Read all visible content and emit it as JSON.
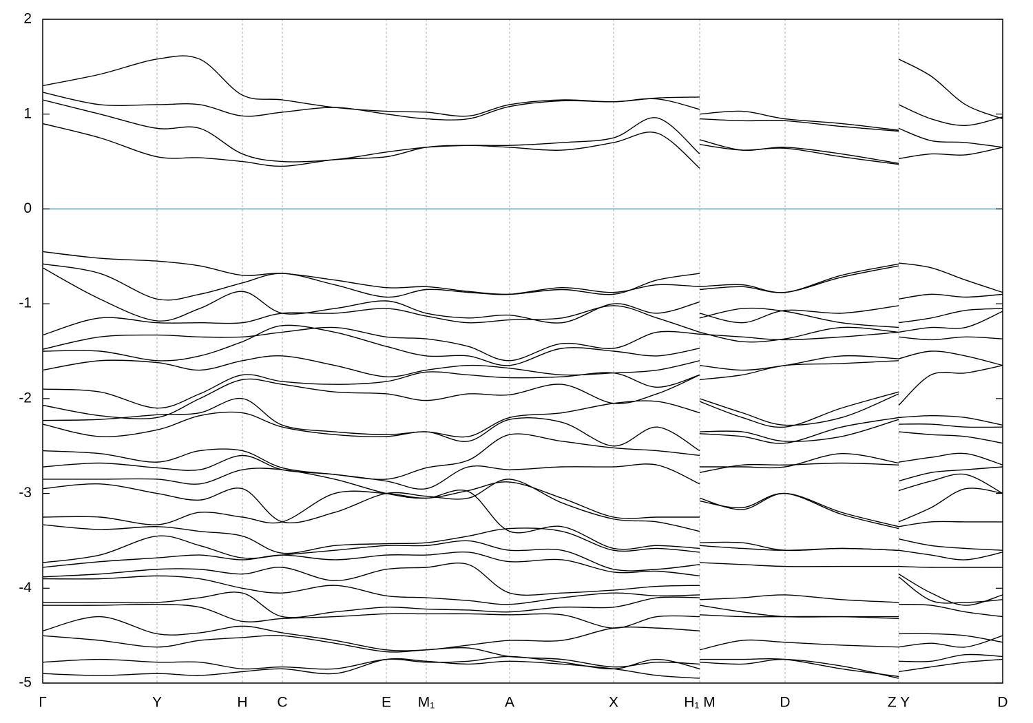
{
  "chart_data": {
    "type": "line",
    "color": "#000000",
    "grid": true,
    "xlim": [
      0,
      1394
    ],
    "ylim": [
      -5,
      2
    ],
    "yticks": [
      -5,
      -4,
      -3,
      -2,
      -1,
      0,
      1,
      2
    ],
    "xticks": [
      {
        "value": 0,
        "label": "Γ"
      },
      {
        "value": 166,
        "label": "Y"
      },
      {
        "value": 290,
        "label": "H"
      },
      {
        "value": 348,
        "label": "C"
      },
      {
        "value": 499,
        "label": "E"
      },
      {
        "value": 557,
        "label": "M₁"
      },
      {
        "value": 678,
        "label": "A"
      },
      {
        "value": 829,
        "label": "X"
      },
      {
        "value": 954,
        "label": "H₁ M"
      },
      {
        "value": 1078,
        "label": "D"
      },
      {
        "value": 1243,
        "label": "Z Y"
      },
      {
        "value": 1394,
        "label": "D"
      }
    ],
    "reference_line": {
      "value": 0,
      "color": "#4fb0c6"
    },
    "segments": [
      {
        "x": [
          0,
          83,
          166,
          228,
          290,
          348,
          424,
          499,
          557,
          618,
          678,
          754,
          829,
          892,
          954
        ],
        "bands": [
          [
            1.3,
            1.42,
            1.58,
            1.58,
            1.2,
            1.15,
            1.07,
            1.03,
            1.02,
            0.98,
            1.1,
            1.15,
            1.13,
            1.17,
            1.18
          ],
          [
            1.23,
            1.1,
            1.1,
            1.1,
            0.98,
            1.02,
            1.07,
            1.0,
            0.95,
            0.95,
            1.08,
            1.14,
            1.13,
            1.16,
            1.05
          ],
          [
            1.15,
            1.0,
            0.85,
            0.85,
            0.58,
            0.5,
            0.52,
            0.6,
            0.65,
            0.67,
            0.67,
            0.7,
            0.75,
            0.96,
            0.58
          ],
          [
            0.9,
            0.75,
            0.55,
            0.54,
            0.5,
            0.45,
            0.52,
            0.55,
            0.65,
            0.67,
            0.65,
            0.62,
            0.7,
            0.8,
            0.43
          ],
          [
            -0.45,
            -0.52,
            -0.55,
            -0.6,
            -0.7,
            -0.68,
            -0.75,
            -0.83,
            -0.82,
            -0.87,
            -0.9,
            -0.85,
            -0.9,
            -0.75,
            -0.68
          ],
          [
            -0.58,
            -0.68,
            -0.95,
            -0.9,
            -0.78,
            -0.68,
            -0.8,
            -0.93,
            -0.85,
            -0.88,
            -0.9,
            -0.83,
            -0.88,
            -0.8,
            -0.82
          ],
          [
            -0.62,
            -0.95,
            -1.18,
            -1.05,
            -0.87,
            -1.1,
            -1.05,
            -0.97,
            -1.1,
            -1.15,
            -1.12,
            -1.2,
            -1.0,
            -1.1,
            -0.98
          ],
          [
            -1.33,
            -1.15,
            -1.2,
            -1.2,
            -1.2,
            -1.1,
            -1.1,
            -1.05,
            -1.13,
            -1.2,
            -1.17,
            -1.15,
            -1.02,
            -1.15,
            -1.3
          ],
          [
            -1.48,
            -1.35,
            -1.33,
            -1.35,
            -1.35,
            -1.3,
            -1.25,
            -1.35,
            -1.37,
            -1.45,
            -1.6,
            -1.42,
            -1.47,
            -1.3,
            -1.32
          ],
          [
            -1.5,
            -1.5,
            -1.6,
            -1.55,
            -1.4,
            -1.23,
            -1.3,
            -1.45,
            -1.55,
            -1.55,
            -1.65,
            -1.47,
            -1.5,
            -1.55,
            -1.47
          ],
          [
            -1.7,
            -1.6,
            -1.62,
            -1.7,
            -1.6,
            -1.55,
            -1.65,
            -1.77,
            -1.7,
            -1.65,
            -1.68,
            -1.75,
            -1.73,
            -1.7,
            -1.6
          ],
          [
            -1.9,
            -1.93,
            -2.1,
            -1.95,
            -1.75,
            -1.82,
            -1.85,
            -1.82,
            -1.72,
            -1.75,
            -1.78,
            -1.77,
            -1.73,
            -1.88,
            -1.75
          ],
          [
            -2.07,
            -2.18,
            -2.2,
            -2.0,
            -1.8,
            -1.85,
            -1.93,
            -1.95,
            -2.02,
            -1.95,
            -1.96,
            -1.85,
            -2.05,
            -1.95,
            -1.75
          ],
          [
            -2.23,
            -2.22,
            -2.17,
            -2.15,
            -2.0,
            -2.28,
            -2.35,
            -2.38,
            -2.35,
            -2.4,
            -2.2,
            -2.15,
            -2.05,
            -2.03,
            -2.15
          ],
          [
            -2.27,
            -2.4,
            -2.33,
            -2.18,
            -2.15,
            -2.3,
            -2.38,
            -2.4,
            -2.35,
            -2.45,
            -2.22,
            -2.25,
            -2.5,
            -2.3,
            -2.55
          ],
          [
            -2.55,
            -2.58,
            -2.67,
            -2.55,
            -2.55,
            -2.73,
            -2.8,
            -2.85,
            -2.73,
            -2.65,
            -2.38,
            -2.45,
            -2.52,
            -2.55,
            -2.6
          ],
          [
            -2.72,
            -2.68,
            -2.73,
            -2.75,
            -2.6,
            -2.75,
            -2.8,
            -2.87,
            -2.95,
            -2.72,
            -2.75,
            -2.72,
            -2.72,
            -2.7,
            -2.9
          ],
          [
            -2.85,
            -2.85,
            -2.85,
            -2.9,
            -2.75,
            -2.75,
            -2.85,
            -3.0,
            -3.05,
            -2.97,
            -2.88,
            -3.05,
            -3.25,
            -3.25,
            -3.25
          ],
          [
            -2.95,
            -2.9,
            -3.0,
            -3.07,
            -2.95,
            -3.3,
            -3.2,
            -3.0,
            -3.03,
            -3.05,
            -2.85,
            -3.1,
            -3.27,
            -3.3,
            -3.4
          ],
          [
            -3.25,
            -3.25,
            -3.33,
            -3.2,
            -3.25,
            -3.3,
            -3.0,
            -3.0,
            -3.05,
            -2.98,
            -3.4,
            -3.35,
            -3.58,
            -3.55,
            -3.58
          ],
          [
            -3.33,
            -3.38,
            -3.35,
            -3.4,
            -3.45,
            -3.63,
            -3.55,
            -3.53,
            -3.52,
            -3.45,
            -3.37,
            -3.4,
            -3.6,
            -3.58,
            -3.62
          ],
          [
            -3.73,
            -3.65,
            -3.45,
            -3.55,
            -3.68,
            -3.65,
            -3.6,
            -3.55,
            -3.55,
            -3.5,
            -3.6,
            -3.6,
            -3.8,
            -3.8,
            -3.75
          ],
          [
            -3.78,
            -3.72,
            -3.68,
            -3.65,
            -3.7,
            -3.65,
            -3.7,
            -3.65,
            -3.65,
            -3.62,
            -3.72,
            -3.7,
            -3.83,
            -3.82,
            -3.87
          ],
          [
            -3.88,
            -3.85,
            -3.8,
            -3.8,
            -3.85,
            -3.78,
            -3.92,
            -3.8,
            -3.78,
            -3.75,
            -4.05,
            -4.05,
            -4.02,
            -3.98,
            -3.97
          ],
          [
            -3.9,
            -3.9,
            -3.87,
            -3.9,
            -4.0,
            -4.05,
            -3.97,
            -4.08,
            -4.1,
            -4.13,
            -4.17,
            -4.1,
            -4.05,
            -4.08,
            -4.07
          ],
          [
            -4.15,
            -4.15,
            -4.15,
            -4.1,
            -4.05,
            -4.3,
            -4.25,
            -4.2,
            -4.22,
            -4.23,
            -4.25,
            -4.2,
            -4.2,
            -4.1,
            -4.1
          ],
          [
            -4.18,
            -4.18,
            -4.17,
            -4.2,
            -4.35,
            -4.32,
            -4.3,
            -4.27,
            -4.27,
            -4.27,
            -4.28,
            -4.28,
            -4.42,
            -4.3,
            -4.3
          ],
          [
            -4.45,
            -4.3,
            -4.48,
            -4.47,
            -4.4,
            -4.47,
            -4.55,
            -4.65,
            -4.65,
            -4.6,
            -4.55,
            -4.55,
            -4.42,
            -4.42,
            -4.45
          ],
          [
            -4.5,
            -4.55,
            -4.62,
            -4.55,
            -4.52,
            -4.5,
            -4.58,
            -4.67,
            -4.65,
            -4.63,
            -4.72,
            -4.75,
            -4.83,
            -4.78,
            -4.8
          ],
          [
            -4.78,
            -4.75,
            -4.78,
            -4.78,
            -4.85,
            -4.83,
            -4.85,
            -4.75,
            -4.78,
            -4.77,
            -4.72,
            -4.78,
            -4.85,
            -4.75,
            -4.85
          ],
          [
            -4.9,
            -4.92,
            -4.9,
            -4.92,
            -4.88,
            -4.85,
            -4.9,
            -4.75,
            -4.77,
            -4.8,
            -4.77,
            -4.8,
            -4.85,
            -4.92,
            -4.95
          ]
        ]
      },
      {
        "x": [
          954,
          1016,
          1078,
          1160,
          1243
        ],
        "bands": [
          [
            1.0,
            1.03,
            0.95,
            0.9,
            0.83
          ],
          [
            0.95,
            0.93,
            0.93,
            0.87,
            0.82
          ],
          [
            0.73,
            0.62,
            0.65,
            0.58,
            0.48
          ],
          [
            0.68,
            0.62,
            0.64,
            0.55,
            0.47
          ],
          [
            -0.82,
            -0.8,
            -0.88,
            -0.7,
            -0.58
          ],
          [
            -0.85,
            -0.82,
            -0.88,
            -0.72,
            -0.6
          ],
          [
            -1.1,
            -1.2,
            -1.07,
            -1.1,
            -1.02
          ],
          [
            -1.15,
            -1.05,
            -1.08,
            -1.2,
            -1.25
          ],
          [
            -1.3,
            -1.4,
            -1.37,
            -1.25,
            -1.3
          ],
          [
            -1.32,
            -1.35,
            -1.38,
            -1.35,
            -1.3
          ],
          [
            -1.65,
            -1.7,
            -1.65,
            -1.55,
            -1.58
          ],
          [
            -1.8,
            -1.75,
            -1.65,
            -1.63,
            -1.6
          ],
          [
            -2.0,
            -2.15,
            -2.28,
            -2.2,
            -1.95
          ],
          [
            -2.03,
            -2.2,
            -2.3,
            -2.1,
            -1.93
          ],
          [
            -2.35,
            -2.35,
            -2.45,
            -2.4,
            -2.22
          ],
          [
            -2.37,
            -2.4,
            -2.47,
            -2.3,
            -2.2
          ],
          [
            -2.72,
            -2.72,
            -2.72,
            -2.58,
            -2.68
          ],
          [
            -2.78,
            -2.7,
            -2.7,
            -2.68,
            -2.7
          ],
          [
            -3.05,
            -3.17,
            -3.0,
            -3.2,
            -3.35
          ],
          [
            -3.08,
            -3.15,
            -3.0,
            -3.22,
            -3.37
          ],
          [
            -3.52,
            -3.52,
            -3.6,
            -3.58,
            -3.6
          ],
          [
            -3.55,
            -3.58,
            -3.6,
            -3.58,
            -3.6
          ],
          [
            -3.73,
            -3.75,
            -3.77,
            -3.77,
            -3.77
          ],
          [
            -4.12,
            -4.1,
            -4.07,
            -4.12,
            -4.15
          ],
          [
            -4.18,
            -4.25,
            -4.3,
            -4.3,
            -4.3
          ],
          [
            -4.28,
            -4.3,
            -4.3,
            -4.3,
            -4.32
          ],
          [
            -4.65,
            -4.55,
            -4.57,
            -4.6,
            -4.62
          ],
          [
            -4.75,
            -4.75,
            -4.75,
            -4.85,
            -4.93
          ],
          [
            -4.78,
            -4.8,
            -4.75,
            -4.82,
            -4.95
          ]
        ]
      },
      {
        "x": [
          1243,
          1290,
          1340,
          1394
        ],
        "bands": [
          [
            1.58,
            1.4,
            1.1,
            0.95
          ],
          [
            1.1,
            0.95,
            0.88,
            0.97
          ],
          [
            0.85,
            0.72,
            0.7,
            0.65
          ],
          [
            0.53,
            0.58,
            0.57,
            0.65
          ],
          [
            -0.57,
            -0.62,
            -0.75,
            -0.88
          ],
          [
            -0.95,
            -0.9,
            -0.93,
            -0.9
          ],
          [
            -1.2,
            -1.15,
            -1.07,
            -1.05
          ],
          [
            -1.3,
            -1.25,
            -1.25,
            -1.08
          ],
          [
            -1.35,
            -1.38,
            -1.35,
            -1.37
          ],
          [
            -1.58,
            -1.5,
            -1.55,
            -1.65
          ],
          [
            -2.07,
            -1.75,
            -1.73,
            -1.65
          ],
          [
            -2.2,
            -2.18,
            -2.2,
            -2.28
          ],
          [
            -2.27,
            -2.27,
            -2.3,
            -2.3
          ],
          [
            -2.35,
            -2.38,
            -2.4,
            -2.47
          ],
          [
            -2.67,
            -2.62,
            -2.58,
            -2.7
          ],
          [
            -2.87,
            -2.78,
            -2.75,
            -2.72
          ],
          [
            -2.97,
            -2.87,
            -2.8,
            -3.0
          ],
          [
            -3.3,
            -3.15,
            -2.95,
            -3.0
          ],
          [
            -3.35,
            -3.3,
            -3.3,
            -3.3
          ],
          [
            -3.48,
            -3.55,
            -3.58,
            -3.6
          ],
          [
            -3.6,
            -3.65,
            -3.7,
            -3.62
          ],
          [
            -3.77,
            -3.78,
            -3.78,
            -3.78
          ],
          [
            -3.85,
            -4.05,
            -4.18,
            -4.07
          ],
          [
            -3.88,
            -4.13,
            -4.15,
            -4.12
          ],
          [
            -4.17,
            -4.18,
            -4.25,
            -4.3
          ],
          [
            -4.48,
            -4.48,
            -4.5,
            -4.57
          ],
          [
            -4.62,
            -4.58,
            -4.62,
            -4.5
          ],
          [
            -4.77,
            -4.77,
            -4.7,
            -4.72
          ],
          [
            -4.88,
            -4.83,
            -4.78,
            -4.75
          ]
        ]
      }
    ]
  }
}
